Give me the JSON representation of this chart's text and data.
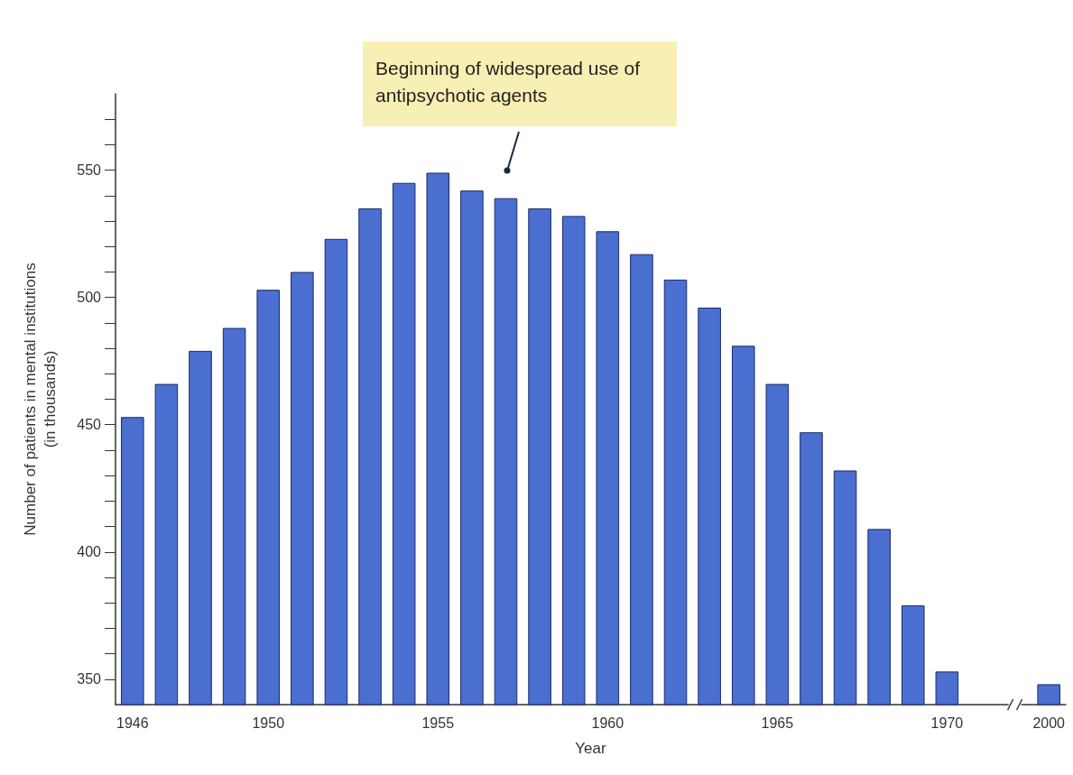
{
  "chart_data": {
    "type": "bar",
    "xlabel": "Year",
    "ylabel": "Number of patients in mental institutions\n(in thousands)",
    "categories": [
      "1946",
      null,
      null,
      null,
      "1950",
      null,
      null,
      null,
      null,
      "1955",
      null,
      null,
      null,
      null,
      "1960",
      null,
      null,
      null,
      null,
      "1965",
      null,
      null,
      null,
      null,
      "1970",
      null,
      null,
      "2000"
    ],
    "values": [
      453,
      466,
      479,
      488,
      503,
      510,
      523,
      535,
      545,
      549,
      542,
      539,
      535,
      532,
      526,
      517,
      507,
      496,
      481,
      466,
      447,
      432,
      409,
      379,
      353,
      null,
      null,
      348
    ],
    "color": "#4a6fd0",
    "ylim": [
      340,
      580
    ],
    "yticks": [
      350,
      400,
      450,
      500,
      550
    ],
    "grid": false,
    "annotations": [
      "Beginning of widespread use of antipsychotic agents"
    ]
  }
}
